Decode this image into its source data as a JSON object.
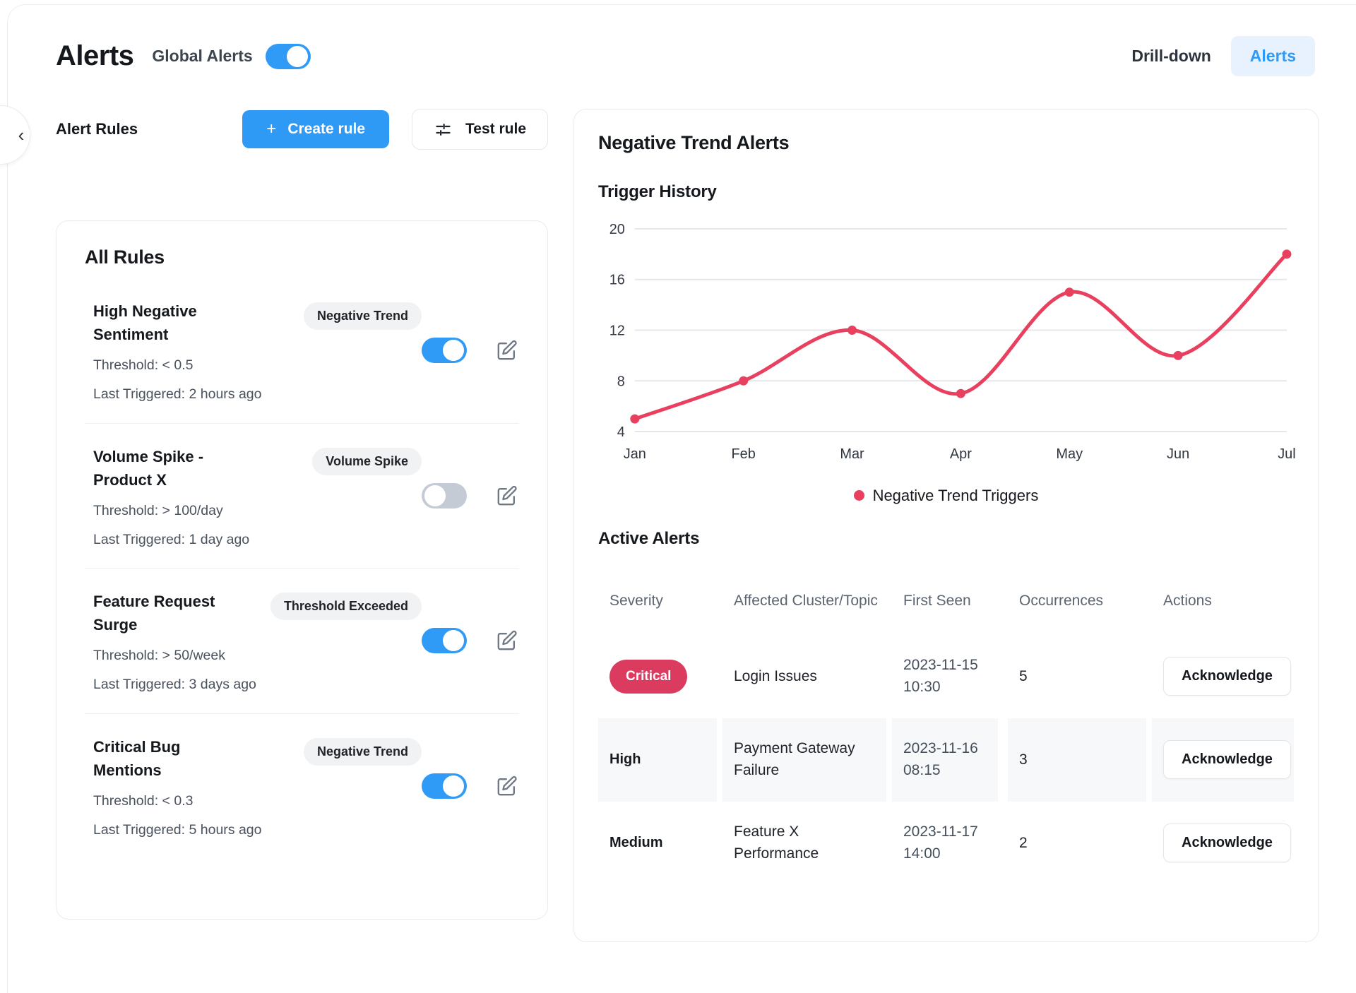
{
  "page": {
    "title": "Alerts",
    "global_toggle_label": "Global Alerts",
    "global_toggle_on": true
  },
  "tabs": {
    "drilldown": "Drill-down",
    "alerts": "Alerts"
  },
  "toolbar": {
    "section_label": "Alert Rules",
    "create_icon": "+",
    "create_button": "Create rule",
    "test_button": "Test rule"
  },
  "rules": {
    "title": "All Rules",
    "items": [
      {
        "name": "High Negative Sentiment",
        "badge": "Negative Trend",
        "enabled": true,
        "threshold": "Threshold: < 0.5",
        "last_triggered": "Last Triggered: 2 hours ago"
      },
      {
        "name": "Volume Spike - Product X",
        "badge": "Volume Spike",
        "enabled": false,
        "threshold": "Threshold: > 100/day",
        "last_triggered": "Last Triggered: 1 day ago"
      },
      {
        "name": "Feature Request Surge",
        "badge": "Threshold Exceeded",
        "enabled": true,
        "threshold": "Threshold: > 50/week",
        "last_triggered": "Last Triggered: 3 days ago"
      },
      {
        "name": "Critical Bug Mentions",
        "badge": "Negative Trend",
        "enabled": true,
        "threshold": "Threshold: < 0.3",
        "last_triggered": "Last Triggered: 5 hours ago"
      }
    ]
  },
  "panel": {
    "title": "Negative Trend Alerts",
    "chart_title": "Trigger History",
    "legend": "Negative Trend Triggers",
    "alerts_title": "Active Alerts"
  },
  "chart_data": {
    "type": "line",
    "title": "Trigger History",
    "x": [
      "Jan",
      "Feb",
      "Mar",
      "Apr",
      "May",
      "Jun",
      "Jul"
    ],
    "series": [
      {
        "name": "Negative Trend Triggers",
        "values": [
          5,
          8,
          12,
          7,
          15,
          10,
          18
        ]
      }
    ],
    "ylim": [
      4,
      20
    ],
    "yticks": [
      4,
      8,
      12,
      16,
      20
    ],
    "grid": "horizontal",
    "legend_position": "bottom",
    "line_color": "#e8405e",
    "smooth": true
  },
  "alerts_table": {
    "columns": [
      "Severity",
      "Affected Cluster/Topic",
      "First Seen",
      "Occurrences",
      "Actions"
    ],
    "action_label": "Acknowledge",
    "rows": [
      {
        "severity": "Critical",
        "cluster": "Login Issues",
        "first_seen": "2023-11-15 10:30",
        "occurrences": "5"
      },
      {
        "severity": "High",
        "cluster": "Payment Gateway Failure",
        "first_seen": "2023-11-16 08:15",
        "occurrences": "3"
      },
      {
        "severity": "Medium",
        "cluster": "Feature X Performance",
        "first_seen": "2023-11-17 14:00",
        "occurrences": "2"
      }
    ]
  },
  "colors": {
    "accent_blue": "#2f9bf7",
    "accent_blue_light": "#e7f2fe",
    "line_red": "#e8405e",
    "critical_red": "#dc3b60",
    "toggle_off_gray": "#c5cbd4"
  }
}
